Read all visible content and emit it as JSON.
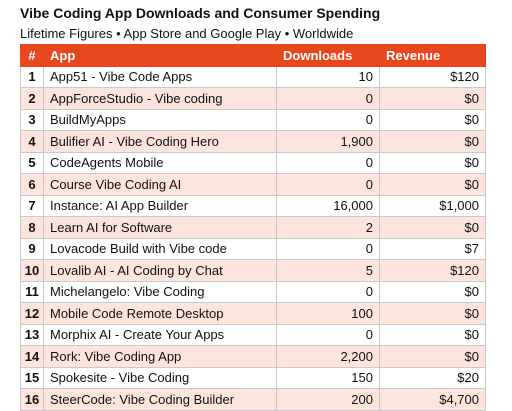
{
  "title": "Vibe Coding App Downloads and Consumer Spending",
  "subtitle": "Lifetime Figures • App Store and Google Play • Worldwide",
  "colors": {
    "header_bg": "#e8461c",
    "header_text": "#ffffff",
    "row_alt": "#fde4dc",
    "row_base": "#ffffff"
  },
  "table": {
    "headers": [
      "#",
      "App",
      "Downloads",
      "Revenue"
    ],
    "rows": [
      {
        "num": "1",
        "app": "App51 - Vibe Code Apps",
        "downloads": "10",
        "revenue": "$120"
      },
      {
        "num": "2",
        "app": "AppForceStudio - Vibe coding",
        "downloads": "0",
        "revenue": "$0"
      },
      {
        "num": "3",
        "app": "BuildMyApps",
        "downloads": "0",
        "revenue": "$0"
      },
      {
        "num": "4",
        "app": "Bulifier AI - Vibe Coding Hero",
        "downloads": "1,900",
        "revenue": "$0"
      },
      {
        "num": "5",
        "app": "CodeAgents Mobile",
        "downloads": "0",
        "revenue": "$0"
      },
      {
        "num": "6",
        "app": "Course Vibe Coding AI",
        "downloads": "0",
        "revenue": "$0"
      },
      {
        "num": "7",
        "app": "Instance: AI App Builder",
        "downloads": "16,000",
        "revenue": "$1,000"
      },
      {
        "num": "8",
        "app": "Learn AI for Software",
        "downloads": "2",
        "revenue": "$0"
      },
      {
        "num": "9",
        "app": "Lovacode Build with Vibe code",
        "downloads": "0",
        "revenue": "$7"
      },
      {
        "num": "10",
        "app": "Lovalib AI - AI Coding by Chat",
        "downloads": "5",
        "revenue": "$120"
      },
      {
        "num": "11",
        "app": "Michelangelo: Vibe Coding",
        "downloads": "0",
        "revenue": "$0"
      },
      {
        "num": "12",
        "app": "Mobile Code Remote Desktop",
        "downloads": "100",
        "revenue": "$0"
      },
      {
        "num": "13",
        "app": "Morphix AI - Create Your Apps",
        "downloads": "0",
        "revenue": "$0"
      },
      {
        "num": "14",
        "app": "Rork: Vibe Coding App",
        "downloads": "2,200",
        "revenue": "$0"
      },
      {
        "num": "15",
        "app": "Spokesite - Vibe Coding",
        "downloads": "150",
        "revenue": "$20"
      },
      {
        "num": "16",
        "app": "SteerCode: Vibe Coding Builder",
        "downloads": "200",
        "revenue": "$4,700"
      }
    ]
  }
}
